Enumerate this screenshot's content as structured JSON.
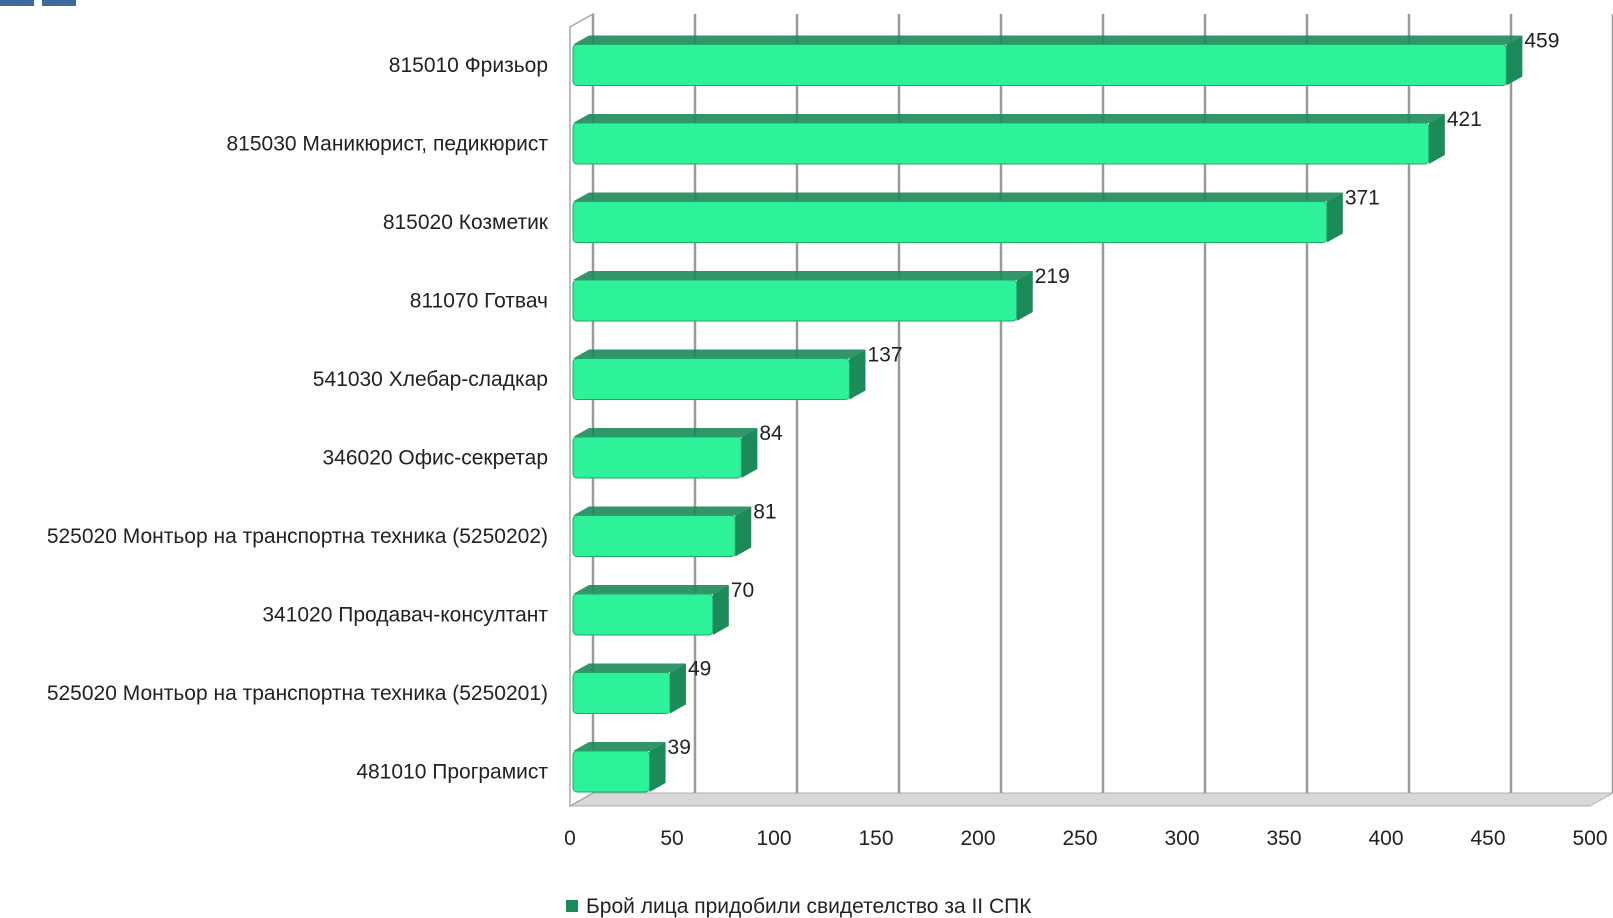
{
  "chart_data": {
    "type": "bar",
    "orientation": "horizontal",
    "three_d": true,
    "categories": [
      "815010  Фризьор",
      "815030 Маникюрист, педикюрист",
      "815020 Козметик",
      "811070 Готвач",
      "541030  Хлебар-сладкар",
      "346020 Офис-секретар",
      "525020 Монтьор на транспортна техника (5250202)",
      "341020 Продавач-консултант",
      "525020 Монтьор на транспортна техника (5250201)",
      "481010 Програмист"
    ],
    "series": [
      {
        "name": "Брой лица придобили свидетелство за II СПК",
        "values": [
          459,
          421,
          371,
          219,
          137,
          84,
          81,
          70,
          49,
          39
        ],
        "color": "#2ef29a",
        "shade_color": "#1d8a5a"
      }
    ],
    "xlim": [
      0,
      500
    ],
    "x_ticks": [
      0,
      50,
      100,
      150,
      200,
      250,
      300,
      350,
      400,
      450,
      500
    ],
    "grid": true,
    "data_labels": true,
    "legend_position": "bottom"
  },
  "legend_marker_color": "#1d8a5a"
}
